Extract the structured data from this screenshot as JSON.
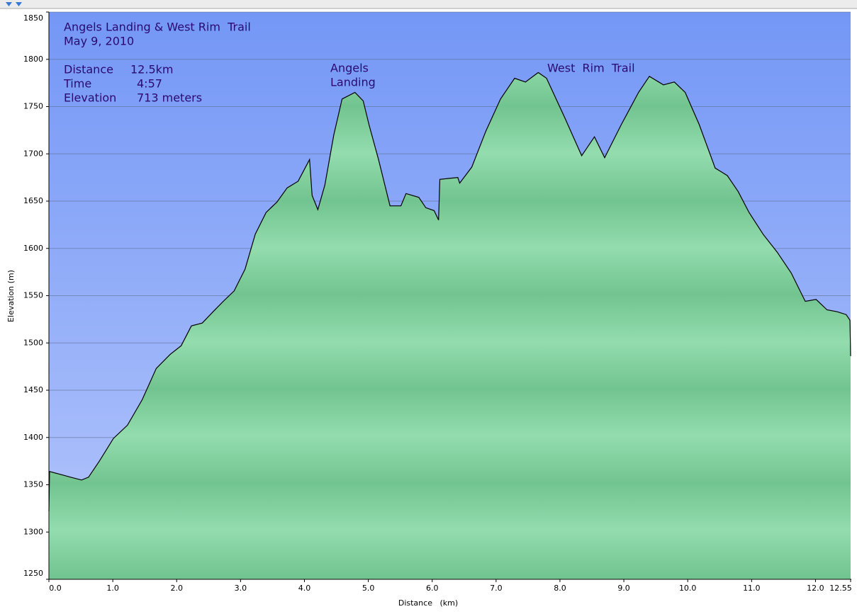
{
  "chart_data": {
    "type": "area",
    "title": "Angels Landing & West Rim  Trail",
    "subtitle": "May 9, 2010",
    "stats": [
      {
        "label": "Distance",
        "value": "12.5km"
      },
      {
        "label": "Time",
        "value": "4:57"
      },
      {
        "label": "Elevation",
        "value": "713 meters"
      }
    ],
    "annotations": [
      "Angels",
      "Landing",
      "West  Rim  Trail"
    ],
    "x_label": "Distance   (km)",
    "y_label": "Elevation (m)",
    "x": [
      0,
      0.01,
      0.23,
      0.34,
      0.51,
      0.62,
      0.79,
      1.01,
      1.23,
      1.46,
      1.68,
      1.9,
      2.07,
      2.23,
      2.4,
      2.57,
      2.73,
      2.9,
      3.07,
      3.23,
      3.4,
      3.57,
      3.73,
      3.9,
      4.08,
      4.12,
      4.21,
      4.32,
      4.46,
      4.59,
      4.79,
      4.92,
      5.01,
      5.16,
      5.34,
      5.51,
      5.59,
      5.79,
      5.9,
      6.03,
      6.1,
      6.12,
      6.4,
      6.43,
      6.62,
      6.84,
      7.07,
      7.29,
      7.46,
      7.66,
      7.79,
      8.07,
      8.34,
      8.54,
      8.7,
      8.96,
      9.23,
      9.4,
      9.62,
      9.79,
      9.96,
      10.18,
      10.43,
      10.62,
      10.79,
      10.96,
      11.18,
      11.4,
      11.62,
      11.84,
      12.01,
      12.18,
      12.34,
      12.48,
      12.54,
      12.55
    ],
    "values": [
      1322,
      1364,
      1360,
      1358,
      1355,
      1358,
      1375,
      1399,
      1413,
      1440,
      1473,
      1488,
      1497,
      1518,
      1521,
      1533,
      1544,
      1555,
      1578,
      1615,
      1638,
      1649,
      1664,
      1671,
      1694,
      1656,
      1641,
      1667,
      1720,
      1758,
      1765,
      1756,
      1731,
      1694,
      1645,
      1645,
      1658,
      1654,
      1643,
      1640,
      1630,
      1673,
      1675,
      1669,
      1686,
      1724,
      1758,
      1780,
      1776,
      1786,
      1780,
      1739,
      1698,
      1718,
      1696,
      1731,
      1765,
      1782,
      1773,
      1776,
      1765,
      1731,
      1685,
      1677,
      1660,
      1638,
      1615,
      1596,
      1574,
      1544,
      1546,
      1535,
      1533,
      1530,
      1524,
      1486
    ],
    "color": "#000000",
    "fill": "#86d3a1",
    "xlim": [
      0,
      12.55
    ],
    "ylim": [
      1250,
      1850
    ],
    "xticks": [
      {
        "value": 0,
        "label": "0.0"
      },
      {
        "value": 1,
        "label": "1.0"
      },
      {
        "value": 2,
        "label": "2.0"
      },
      {
        "value": 3,
        "label": "3.0"
      },
      {
        "value": 4,
        "label": "4.0"
      },
      {
        "value": 5,
        "label": "5.0"
      },
      {
        "value": 6,
        "label": "6.0"
      },
      {
        "value": 7,
        "label": "7.0"
      },
      {
        "value": 8,
        "label": "8.0"
      },
      {
        "value": 9,
        "label": "9.0"
      },
      {
        "value": 10,
        "label": "10.0"
      },
      {
        "value": 11,
        "label": "11.0"
      },
      {
        "value": 12,
        "label": "12.0"
      },
      12.55
    ],
    "yticks": [
      1250,
      1300,
      1350,
      1400,
      1450,
      1500,
      1550,
      1600,
      1650,
      1700,
      1750,
      1800,
      1850
    ],
    "grid": true
  }
}
